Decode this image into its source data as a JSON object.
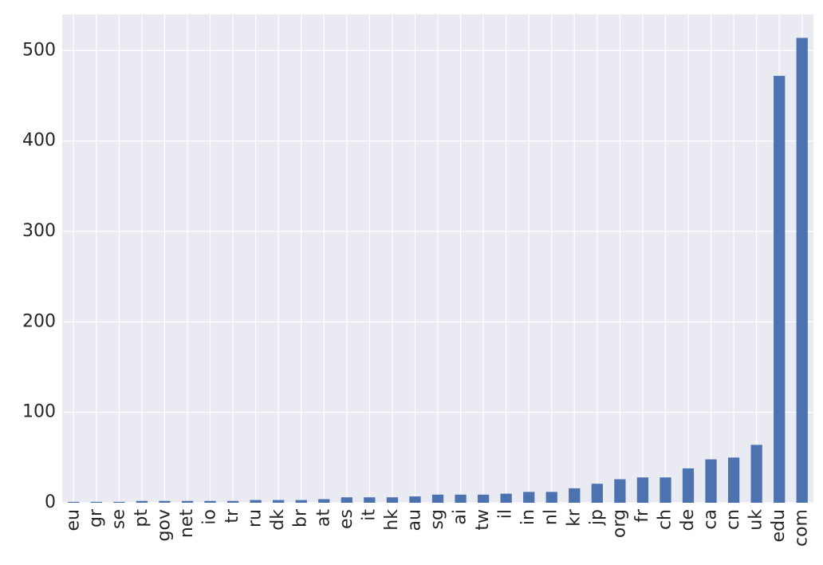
{
  "chart_data": {
    "type": "bar",
    "categories": [
      "eu",
      "gr",
      "se",
      "pt",
      "gov",
      "net",
      "io",
      "tr",
      "ru",
      "dk",
      "br",
      "at",
      "es",
      "it",
      "hk",
      "au",
      "sg",
      "ai",
      "tw",
      "il",
      "in",
      "nl",
      "kr",
      "jp",
      "org",
      "fr",
      "ch",
      "de",
      "ca",
      "cn",
      "uk",
      "edu",
      "com"
    ],
    "values": [
      1,
      1,
      1,
      2,
      2,
      2,
      2,
      2,
      3,
      3,
      3,
      4,
      6,
      6,
      6,
      7,
      9,
      9,
      9,
      10,
      12,
      12,
      16,
      21,
      26,
      28,
      28,
      38,
      48,
      50,
      64,
      472,
      514
    ],
    "color": "#4c72b0",
    "ylim": [
      0,
      540
    ],
    "yticks": [
      0,
      100,
      200,
      300,
      400,
      500
    ],
    "grid": true
  }
}
